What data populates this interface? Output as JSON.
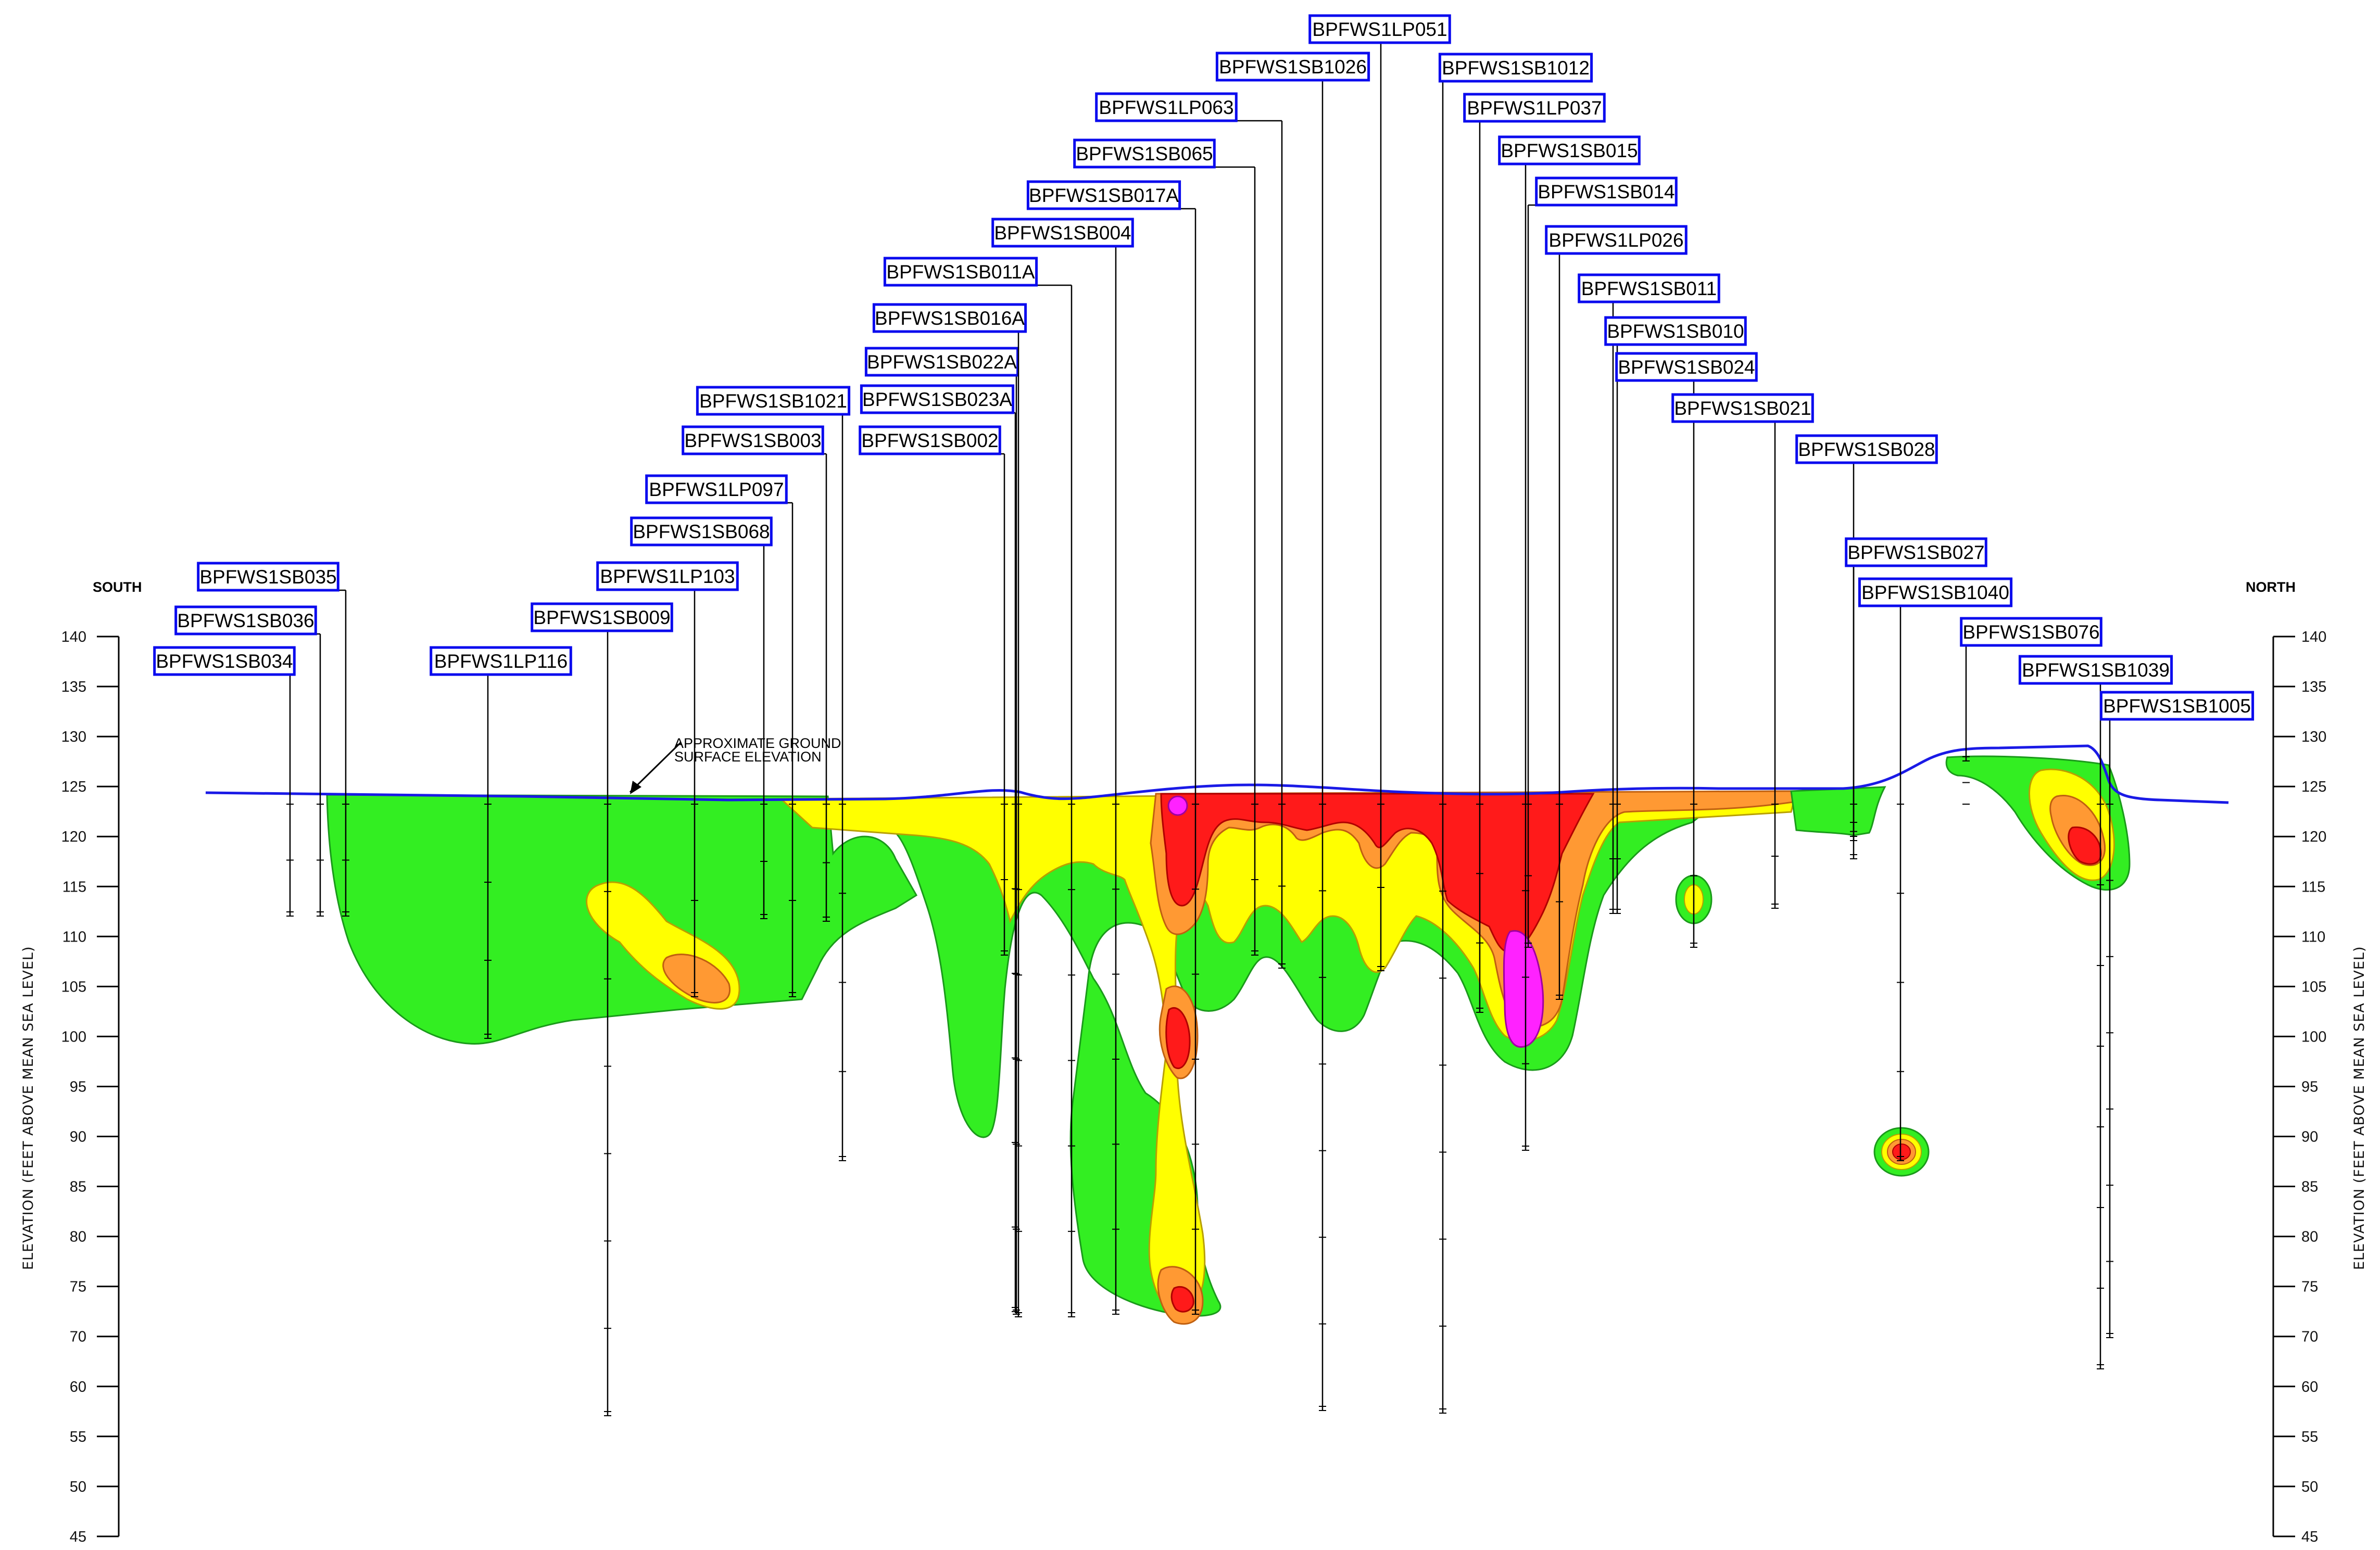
{
  "orientation": {
    "left": "SOUTH",
    "right": "NORTH"
  },
  "axis": {
    "label": "ELEVATION (FEET ABOVE MEAN SEA LEVEL)",
    "ticks": [
      "140",
      "135",
      "130",
      "125",
      "120",
      "115",
      "110",
      "105",
      "100",
      "95",
      "90",
      "85",
      "80",
      "75",
      "70",
      "60",
      "55",
      "50",
      "45"
    ]
  },
  "ground_note": [
    "APPROXIMATE GROUND",
    "SURFACE ELEVATION"
  ],
  "colors": {
    "ground_line": "#1a1ae6",
    "label_border": "#0a0aee",
    "zone_green": "#33ee22",
    "zone_yellow": "#ffff00",
    "zone_orange": "#ff9933",
    "zone_red": "#ff1a1a",
    "zone_magenta": "#ff22ff"
  },
  "borings": [
    {
      "id": "BPFWS1SB034"
    },
    {
      "id": "BPFWS1SB036"
    },
    {
      "id": "BPFWS1SB035"
    },
    {
      "id": "BPFWS1LP116"
    },
    {
      "id": "BPFWS1SB009"
    },
    {
      "id": "BPFWS1LP103"
    },
    {
      "id": "BPFWS1SB068"
    },
    {
      "id": "BPFWS1LP097"
    },
    {
      "id": "BPFWS1SB003"
    },
    {
      "id": "BPFWS1SB1021"
    },
    {
      "id": "BPFWS1SB002"
    },
    {
      "id": "BPFWS1SB023A"
    },
    {
      "id": "BPFWS1SB022A"
    },
    {
      "id": "BPFWS1SB016A"
    },
    {
      "id": "BPFWS1SB011A"
    },
    {
      "id": "BPFWS1SB004"
    },
    {
      "id": "BPFWS1SB017A"
    },
    {
      "id": "BPFWS1SB065"
    },
    {
      "id": "BPFWS1LP063"
    },
    {
      "id": "BPFWS1SB1026"
    },
    {
      "id": "BPFWS1LP051"
    },
    {
      "id": "BPFWS1SB1012"
    },
    {
      "id": "BPFWS1LP037"
    },
    {
      "id": "BPFWS1SB015"
    },
    {
      "id": "BPFWS1SB014"
    },
    {
      "id": "BPFWS1LP026"
    },
    {
      "id": "BPFWS1SB011"
    },
    {
      "id": "BPFWS1SB010"
    },
    {
      "id": "BPFWS1SB024"
    },
    {
      "id": "BPFWS1SB021"
    },
    {
      "id": "BPFWS1SB028"
    },
    {
      "id": "BPFWS1SB027"
    },
    {
      "id": "BPFWS1SB1040"
    },
    {
      "id": "BPFWS1SB076"
    },
    {
      "id": "BPFWS1SB1039"
    },
    {
      "id": "BPFWS1SB1005"
    }
  ]
}
